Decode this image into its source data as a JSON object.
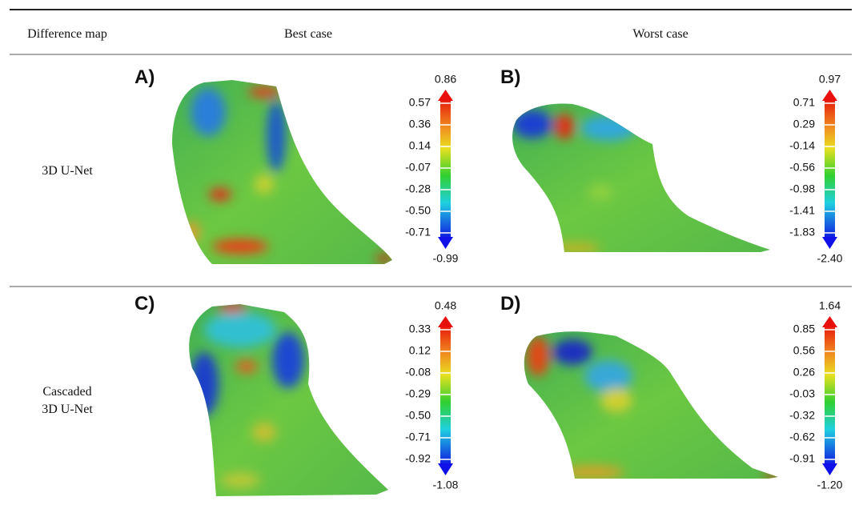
{
  "table": {
    "header": [
      "Difference map",
      "Best case",
      "Worst case"
    ],
    "rows": [
      {
        "label": [
          "3D U-Net"
        ],
        "panels": [
          {
            "label": "A)",
            "max": "0.86",
            "ticks": [
              "0.57",
              "0.36",
              "0.14",
              "-0.07",
              "-0.28",
              "-0.50",
              "-0.71"
            ],
            "min": "-0.99"
          },
          {
            "label": "B)",
            "max": "0.97",
            "ticks": [
              "0.71",
              "0.29",
              "-0.14",
              "-0.56",
              "-0.98",
              "-1.41",
              "-1.83"
            ],
            "min": "-2.40"
          }
        ]
      },
      {
        "label": [
          "Cascaded",
          "3D U-Net"
        ],
        "panels": [
          {
            "label": "C)",
            "max": "0.48",
            "ticks": [
              "0.33",
              "0.12",
              "-0.08",
              "-0.29",
              "-0.50",
              "-0.71",
              "-0.92"
            ],
            "min": "-1.08"
          },
          {
            "label": "D)",
            "max": "1.64",
            "ticks": [
              "0.85",
              "0.56",
              "0.26",
              "-0.03",
              "-0.32",
              "-0.62",
              "-0.91"
            ],
            "min": "-1.20"
          }
        ]
      }
    ]
  }
}
